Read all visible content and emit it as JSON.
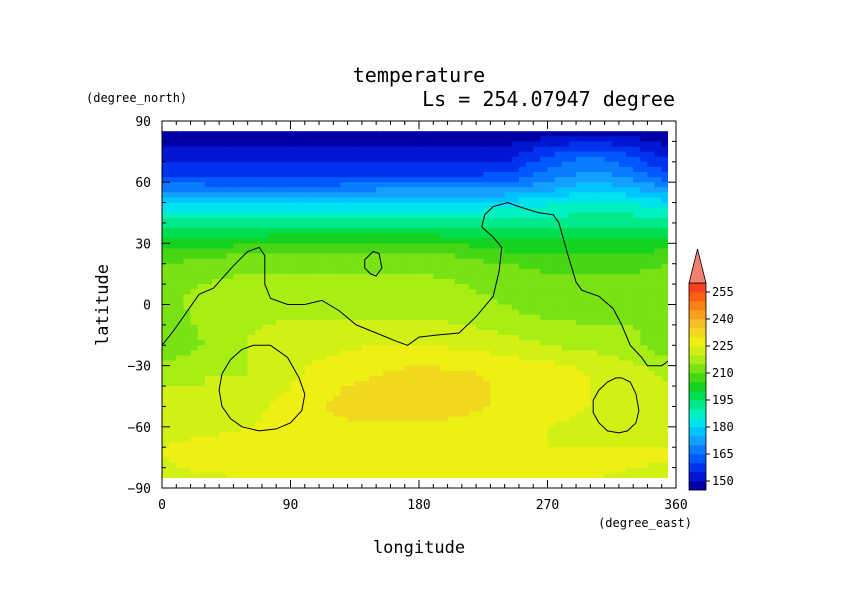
{
  "chart_data": {
    "type": "heatmap",
    "title": "temperature",
    "subtitle": "Ls = 254.07947 degree",
    "xlabel": "longitude",
    "ylabel": "latitude",
    "x_unit": "(degree_east)",
    "y_unit": "(degree_north)",
    "xlim": [
      0,
      360
    ],
    "ylim": [
      -90,
      90
    ],
    "x_ticks": [
      "0",
      "90",
      "180",
      "270",
      "360"
    ],
    "y_ticks": [
      "90",
      "60",
      "30",
      "0",
      "−30",
      "−60",
      "−90"
    ],
    "x_tick_values": [
      0,
      90,
      180,
      270,
      360
    ],
    "y_tick_values": [
      90,
      60,
      30,
      0,
      -30,
      -60,
      -90
    ],
    "colorbar": {
      "levels": [
        145,
        150,
        155,
        160,
        165,
        170,
        175,
        180,
        185,
        190,
        195,
        200,
        205,
        210,
        215,
        220,
        225,
        230,
        235,
        240,
        245,
        250,
        255,
        260
      ],
      "colors": [
        "#0000a6",
        "#0016d0",
        "#0032f0",
        "#0058ff",
        "#0a7cff",
        "#14a0ff",
        "#00c4ff",
        "#00e2ee",
        "#00f0c0",
        "#00ea8c",
        "#00de50",
        "#14d21e",
        "#46d614",
        "#78e214",
        "#a8ee14",
        "#d2f014",
        "#eef014",
        "#f0d81e",
        "#f8be2a",
        "#f8a01e",
        "#f88014",
        "#f86014",
        "#f8401e",
        "#e8141e"
      ],
      "labels": [
        "150",
        "165",
        "180",
        "195",
        "210",
        "225",
        "240",
        "255"
      ],
      "label_values": [
        150,
        165,
        180,
        195,
        210,
        225,
        240,
        255
      ]
    },
    "field": {
      "lat": [
        85,
        80,
        75,
        70,
        65,
        60,
        55,
        50,
        45,
        40,
        35,
        30,
        25,
        20,
        15,
        10,
        5,
        0,
        -5,
        -10,
        -15,
        -20,
        -25,
        -30,
        -35,
        -40,
        -45,
        -50,
        -55,
        -60,
        -65,
        -70,
        -75,
        -80,
        -85
      ],
      "lon": [
        0,
        30,
        60,
        90,
        120,
        150,
        180,
        210,
        240,
        270,
        300,
        330,
        360
      ],
      "values": [
        [
          145,
          145,
          145,
          145,
          145,
          145,
          145,
          145,
          145,
          145,
          145,
          145,
          145
        ],
        [
          148,
          148,
          148,
          148,
          148,
          148,
          148,
          148,
          148,
          152,
          155,
          152,
          148
        ],
        [
          151,
          151,
          151,
          151,
          151,
          151,
          151,
          151,
          152,
          158,
          162,
          158,
          151
        ],
        [
          154,
          154,
          154,
          154,
          154,
          154,
          154,
          154,
          155,
          162,
          168,
          162,
          155
        ],
        [
          158,
          158,
          158,
          158,
          158,
          158,
          158,
          158,
          159,
          166,
          171,
          166,
          158
        ],
        [
          164,
          163,
          162,
          162,
          163,
          164,
          164,
          164,
          165,
          170,
          175,
          172,
          164
        ],
        [
          172,
          171,
          170,
          170,
          170,
          172,
          172,
          172,
          173,
          176,
          180,
          178,
          172
        ],
        [
          180,
          180,
          179,
          179,
          179,
          180,
          180,
          180,
          181,
          184,
          186,
          185,
          180
        ],
        [
          186,
          186,
          186,
          186,
          186,
          186,
          186,
          186,
          187,
          188,
          190,
          189,
          186
        ],
        [
          192,
          192,
          192,
          193,
          193,
          193,
          193,
          192,
          192,
          193,
          194,
          193,
          192
        ],
        [
          198,
          198,
          198,
          199,
          199,
          199,
          199,
          198,
          197,
          197,
          198,
          197,
          198
        ],
        [
          203,
          203,
          204,
          205,
          205,
          205,
          205,
          204,
          202,
          201,
          202,
          201,
          203
        ],
        [
          207,
          208,
          210,
          210,
          210,
          210,
          210,
          209,
          206,
          205,
          206,
          205,
          207
        ],
        [
          210,
          212,
          213,
          213,
          213,
          213,
          213,
          212,
          210,
          208,
          209,
          208,
          210
        ],
        [
          212,
          214,
          215,
          215,
          215,
          215,
          215,
          214,
          212,
          210,
          210,
          210,
          212
        ],
        [
          213,
          215,
          216,
          216,
          216,
          216,
          216,
          215,
          213,
          211,
          211,
          211,
          213
        ],
        [
          214,
          216,
          217,
          217,
          217,
          217,
          217,
          216,
          214,
          212,
          212,
          212,
          214
        ],
        [
          214,
          216,
          218,
          218,
          218,
          218,
          218,
          217,
          215,
          213,
          213,
          213,
          214
        ],
        [
          213,
          216,
          219,
          219,
          219,
          219,
          219,
          218,
          216,
          214,
          214,
          214,
          213
        ],
        [
          212,
          216,
          219,
          221,
          222,
          222,
          222,
          220,
          218,
          216,
          215,
          215,
          212
        ],
        [
          211,
          216,
          220,
          222,
          223,
          223,
          223,
          222,
          220,
          218,
          217,
          216,
          211
        ],
        [
          210,
          215,
          220,
          223,
          224,
          225,
          225,
          224,
          222,
          220,
          218,
          216,
          210
        ],
        [
          213,
          217,
          220,
          223,
          225,
          226,
          227,
          227,
          225,
          223,
          221,
          218,
          213
        ],
        [
          217,
          219,
          220,
          224,
          227,
          229,
          230,
          229,
          228,
          226,
          224,
          221,
          217
        ],
        [
          219,
          220,
          220,
          224,
          228,
          230,
          232,
          231,
          229,
          227,
          225,
          222,
          219
        ],
        [
          220,
          220,
          221,
          225,
          229,
          232,
          234,
          232,
          229,
          227,
          225,
          222,
          220
        ],
        [
          221,
          221,
          222,
          226,
          230,
          233,
          235,
          232,
          229,
          227,
          225,
          222,
          221
        ],
        [
          221,
          221,
          223,
          227,
          231,
          234,
          235,
          232,
          229,
          227,
          225,
          222,
          221
        ],
        [
          222,
          222,
          224,
          227,
          230,
          232,
          232,
          230,
          228,
          226,
          224,
          222,
          222
        ],
        [
          223,
          223,
          225,
          227,
          228,
          229,
          229,
          228,
          227,
          225,
          224,
          223,
          223
        ],
        [
          224,
          225,
          226,
          227,
          227,
          227,
          227,
          227,
          226,
          225,
          224,
          224,
          224
        ],
        [
          225,
          226,
          227,
          227,
          227,
          227,
          227,
          227,
          226,
          225,
          225,
          225,
          225
        ],
        [
          225,
          227,
          227,
          227,
          227,
          227,
          227,
          227,
          227,
          226,
          226,
          226,
          225
        ],
        [
          224,
          226,
          227,
          227,
          227,
          227,
          227,
          227,
          227,
          226,
          226,
          225,
          224
        ],
        [
          223,
          224,
          225,
          225,
          225,
          225,
          225,
          225,
          225,
          225,
          225,
          224,
          223
        ]
      ]
    },
    "topography_contours": [
      {
        "lon": [
          0,
          8,
          18,
          26,
          36,
          50,
          60,
          68,
          72,
          72,
          76,
          88,
          100,
          112,
          124,
          136,
          150,
          164,
          172,
          180,
          192,
          208,
          220,
          232,
          236,
          238,
          232,
          224,
          226,
          232,
          242,
          250,
          264,
          274,
          278,
          284,
          290,
          294,
          306,
          316,
          322,
          328,
          336,
          340,
          350,
          356,
          360
        ],
        "lat": [
          -20,
          -13,
          -3,
          5,
          8,
          19,
          26,
          28,
          24,
          10,
          3,
          0,
          0,
          2,
          -3,
          -10,
          -14,
          -18,
          -20,
          -16,
          -15,
          -14,
          -6,
          4,
          16,
          28,
          33,
          38,
          44,
          48,
          50,
          48,
          45,
          44,
          40,
          25,
          11,
          7,
          4,
          -2,
          -10,
          -20,
          -26,
          -30,
          -30,
          -27,
          -20
        ]
      },
      {
        "lon": [
          142,
          148,
          152,
          154,
          150,
          146,
          142,
          142
        ],
        "lat": [
          22,
          26,
          25,
          18,
          14,
          15,
          18,
          22
        ]
      },
      {
        "lon": [
          76,
          88,
          96,
          100,
          98,
          90,
          80,
          68,
          56,
          48,
          42,
          40,
          42,
          48,
          56,
          64,
          72,
          76
        ],
        "lat": [
          -20,
          -26,
          -36,
          -44,
          -52,
          -58,
          -61,
          -62,
          -60,
          -56,
          -50,
          -42,
          -34,
          -27,
          -22,
          -20,
          -20,
          -20
        ]
      },
      {
        "lon": [
          322,
          328,
          332,
          334,
          332,
          326,
          320,
          312,
          306,
          302,
          302,
          306,
          312,
          318,
          322
        ],
        "lat": [
          -36,
          -38,
          -44,
          -52,
          -58,
          -62,
          -63,
          -62,
          -58,
          -53,
          -47,
          -42,
          -38,
          -36,
          -36
        ]
      }
    ]
  }
}
